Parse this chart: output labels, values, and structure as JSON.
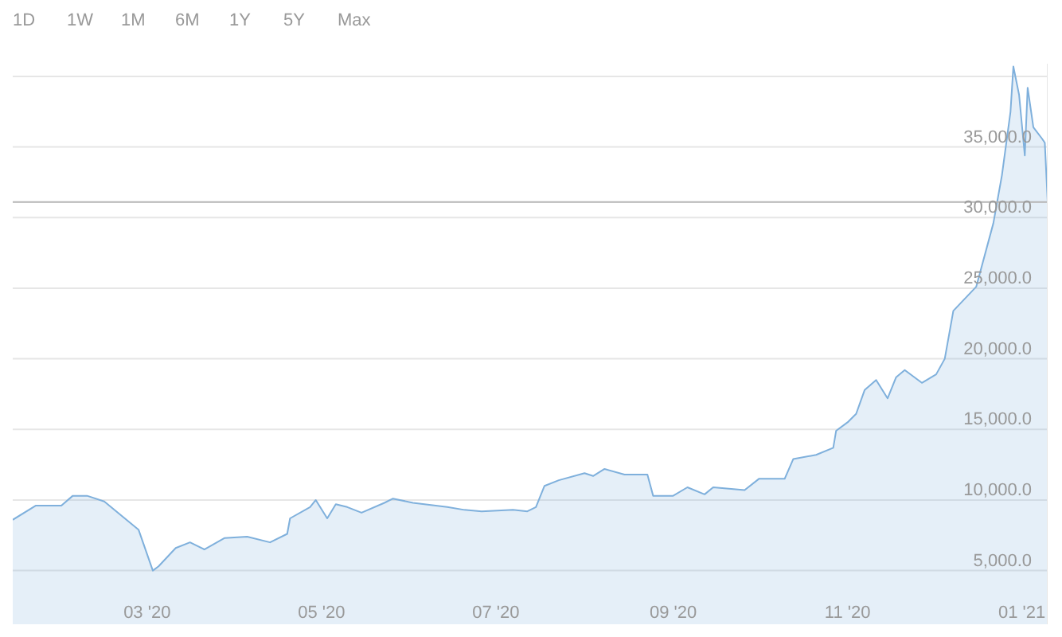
{
  "chart_data": {
    "type": "area",
    "annotations": [
      "1D",
      "1W",
      "1M",
      "6M",
      "1Y",
      "5Y",
      "Max"
    ],
    "x": [
      "2020-01-14",
      "2020-01-22",
      "2020-01-31",
      "2020-02-04",
      "2020-02-09",
      "2020-02-15",
      "2020-02-27",
      "2020-03-03",
      "2020-03-05",
      "2020-03-11",
      "2020-03-16",
      "2020-03-21",
      "2020-03-28",
      "2020-04-05",
      "2020-04-13",
      "2020-04-19",
      "2020-04-20",
      "2020-04-27",
      "2020-04-29",
      "2020-05-03",
      "2020-05-06",
      "2020-05-10",
      "2020-05-15",
      "2020-05-23",
      "2020-05-26",
      "2020-06-02",
      "2020-06-14",
      "2020-06-20",
      "2020-06-26",
      "2020-07-07",
      "2020-07-12",
      "2020-07-15",
      "2020-07-18",
      "2020-07-23",
      "2020-08-01",
      "2020-08-04",
      "2020-08-08",
      "2020-08-15",
      "2020-08-23",
      "2020-08-25",
      "2020-09-01",
      "2020-09-06",
      "2020-09-12",
      "2020-09-15",
      "2020-09-26",
      "2020-10-01",
      "2020-10-10",
      "2020-10-13",
      "2020-10-21",
      "2020-10-27",
      "2020-10-28",
      "2020-11-01",
      "2020-11-04",
      "2020-11-07",
      "2020-11-11",
      "2020-11-15",
      "2020-11-18",
      "2020-11-21",
      "2020-11-27",
      "2020-12-02",
      "2020-12-05",
      "2020-12-08",
      "2020-12-16",
      "2020-12-22",
      "2020-12-25",
      "2020-12-28",
      "2020-12-29",
      "2020-12-31",
      "2021-01-02",
      "2021-01-03",
      "2021-01-05",
      "2021-01-08",
      "2021-01-09",
      "2021-01-10"
    ],
    "series": [
      {
        "color": "#7fb0dc",
        "values": [
          8600,
          9600,
          9600,
          10300,
          10300,
          9900,
          7900,
          5000,
          5300,
          6600,
          7000,
          6500,
          7300,
          7400,
          7000,
          7600,
          8700,
          9500,
          10000,
          8700,
          9700,
          9500,
          9100,
          9800,
          10100,
          9800,
          9500,
          9300,
          9200,
          9300,
          9200,
          9500,
          11000,
          11400,
          11900,
          11700,
          12200,
          11800,
          11800,
          10300,
          10300,
          10900,
          10400,
          10900,
          10700,
          11500,
          11500,
          12900,
          13200,
          13700,
          14900,
          15500,
          16100,
          17800,
          18500,
          17200,
          18700,
          19200,
          18300,
          18900,
          20000,
          23400,
          25100,
          29600,
          33000,
          37500,
          40700,
          38700,
          34400,
          39200,
          36400,
          35600,
          35300,
          31100
        ]
      }
    ],
    "xlim": [
      "2020-01-14",
      "2021-01-10"
    ],
    "xticks": [
      {
        "value": "2020-03-01",
        "label": "03 '20"
      },
      {
        "value": "2020-05-01",
        "label": "05 '20"
      },
      {
        "value": "2020-07-01",
        "label": "07 '20"
      },
      {
        "value": "2020-09-01",
        "label": "09 '20"
      },
      {
        "value": "2020-11-01",
        "label": "11 '20"
      },
      {
        "value": "2021-01-01",
        "label": "01 '21"
      }
    ],
    "ylim": [
      1200,
      40900
    ],
    "yticks": [
      {
        "value": 5000,
        "label": "5,000.0"
      },
      {
        "value": 10000,
        "label": "10,000.0"
      },
      {
        "value": 15000,
        "label": "15,000.0"
      },
      {
        "value": 20000,
        "label": "20,000.0"
      },
      {
        "value": 25000,
        "label": "25,000.0"
      },
      {
        "value": 30000,
        "label": "30,000.0"
      },
      {
        "value": 35000,
        "label": "35,000.0"
      },
      {
        "value": 40000,
        "label": null
      }
    ],
    "grid": "y",
    "ref_lines": [
      {
        "axis": "y",
        "value": 31100,
        "color": "#b4b4b4"
      }
    ]
  }
}
